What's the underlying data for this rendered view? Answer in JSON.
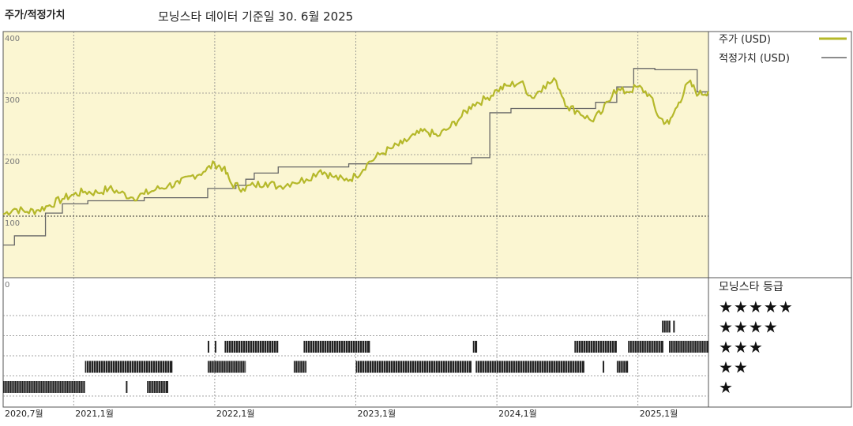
{
  "header": {
    "left_title": "주가/적정가치",
    "center_title": "모닝스타 데이터 기준일 30. 6월 2025"
  },
  "colors": {
    "price": "#b5b82a",
    "fair_value": "#666666",
    "plot_bg": "#fbf6d2",
    "grid": "#888888",
    "bars": "#222222"
  },
  "chart_data": {
    "type": "line",
    "y_ticks": [
      "400",
      "300",
      "200",
      "100",
      "0"
    ],
    "ylim": [
      0,
      400
    ],
    "x_ticks": [
      "2020,7월",
      "2021,1월",
      "2022,1월",
      "2023,1월",
      "2024,1월",
      "2025,1월"
    ],
    "x_tick_times": [
      2020.5,
      2021.0,
      2022.0,
      2023.0,
      2024.0,
      2025.0
    ],
    "xlim": [
      2020.5,
      2025.5
    ],
    "ref_line": 100,
    "legend": [
      {
        "label": "주가 (USD)",
        "series": "price"
      },
      {
        "label": "적정가치 (USD)",
        "series": "fair_value"
      }
    ],
    "series": [
      {
        "name": "주가 (USD)",
        "key": "price",
        "points": [
          [
            2020.5,
            103
          ],
          [
            2020.58,
            112
          ],
          [
            2020.67,
            107
          ],
          [
            2020.75,
            110
          ],
          [
            2020.83,
            118
          ],
          [
            2020.92,
            128
          ],
          [
            2021.0,
            135
          ],
          [
            2021.08,
            140
          ],
          [
            2021.17,
            138
          ],
          [
            2021.25,
            145
          ],
          [
            2021.33,
            138
          ],
          [
            2021.42,
            130
          ],
          [
            2021.5,
            136
          ],
          [
            2021.58,
            143
          ],
          [
            2021.67,
            150
          ],
          [
            2021.75,
            153
          ],
          [
            2021.83,
            165
          ],
          [
            2021.92,
            172
          ],
          [
            2022.0,
            185
          ],
          [
            2022.06,
            178
          ],
          [
            2022.12,
            152
          ],
          [
            2022.2,
            145
          ],
          [
            2022.28,
            150
          ],
          [
            2022.36,
            155
          ],
          [
            2022.45,
            148
          ],
          [
            2022.55,
            155
          ],
          [
            2022.65,
            160
          ],
          [
            2022.75,
            175
          ],
          [
            2022.83,
            165
          ],
          [
            2022.92,
            158
          ],
          [
            2023.0,
            165
          ],
          [
            2023.08,
            185
          ],
          [
            2023.17,
            200
          ],
          [
            2023.25,
            210
          ],
          [
            2023.33,
            218
          ],
          [
            2023.42,
            232
          ],
          [
            2023.5,
            238
          ],
          [
            2023.58,
            230
          ],
          [
            2023.67,
            245
          ],
          [
            2023.75,
            262
          ],
          [
            2023.83,
            282
          ],
          [
            2023.92,
            290
          ],
          [
            2024.0,
            305
          ],
          [
            2024.08,
            312
          ],
          [
            2024.17,
            318
          ],
          [
            2024.25,
            292
          ],
          [
            2024.33,
            312
          ],
          [
            2024.42,
            320
          ],
          [
            2024.5,
            278
          ],
          [
            2024.58,
            270
          ],
          [
            2024.67,
            255
          ],
          [
            2024.75,
            270
          ],
          [
            2024.83,
            305
          ],
          [
            2024.92,
            302
          ],
          [
            2025.0,
            310
          ],
          [
            2025.08,
            298
          ],
          [
            2025.15,
            260
          ],
          [
            2025.22,
            250
          ],
          [
            2025.29,
            285
          ],
          [
            2025.36,
            318
          ],
          [
            2025.43,
            298
          ],
          [
            2025.5,
            303
          ]
        ]
      },
      {
        "name": "적정가치 (USD)",
        "key": "fair_value",
        "steps": [
          [
            2020.5,
            53
          ],
          [
            2020.58,
            68
          ],
          [
            2020.8,
            105
          ],
          [
            2020.92,
            120
          ],
          [
            2021.1,
            125
          ],
          [
            2021.5,
            130
          ],
          [
            2021.95,
            145
          ],
          [
            2022.15,
            150
          ],
          [
            2022.22,
            160
          ],
          [
            2022.28,
            170
          ],
          [
            2022.45,
            180
          ],
          [
            2022.95,
            185
          ],
          [
            2023.82,
            195
          ],
          [
            2023.95,
            268
          ],
          [
            2024.1,
            275
          ],
          [
            2024.7,
            285
          ],
          [
            2024.85,
            310
          ],
          [
            2024.97,
            340
          ],
          [
            2025.12,
            338
          ],
          [
            2025.42,
            302
          ]
        ]
      }
    ]
  },
  "rating": {
    "title": "모닝스타 등급",
    "rows": [
      "★★★★★",
      "★★★★",
      "★★★",
      "★★",
      "★"
    ],
    "bands": [
      {
        "stars": 1,
        "ranges": [
          [
            2020.5,
            2021.08
          ],
          [
            2021.37,
            2021.38
          ],
          [
            2021.52,
            2021.67
          ]
        ]
      },
      {
        "stars": 2,
        "ranges": [
          [
            2021.08,
            2021.7
          ],
          [
            2021.95,
            2022.22
          ],
          [
            2022.56,
            2022.65
          ],
          [
            2023.0,
            2023.82
          ],
          [
            2023.85,
            2024.62
          ],
          [
            2024.75,
            2024.76
          ],
          [
            2024.85,
            2024.93
          ]
        ]
      },
      {
        "stars": 3,
        "ranges": [
          [
            2021.95,
            2021.96
          ],
          [
            2022.0,
            2022.01
          ],
          [
            2022.07,
            2022.45
          ],
          [
            2022.63,
            2023.1
          ],
          [
            2023.83,
            2023.86
          ],
          [
            2024.55,
            2024.85
          ],
          [
            2024.93,
            2025.18
          ],
          [
            2025.22,
            2025.5
          ]
        ]
      },
      {
        "stars": 4,
        "ranges": [
          [
            2025.17,
            2025.23
          ],
          [
            2025.25,
            2025.26
          ]
        ]
      }
    ]
  }
}
